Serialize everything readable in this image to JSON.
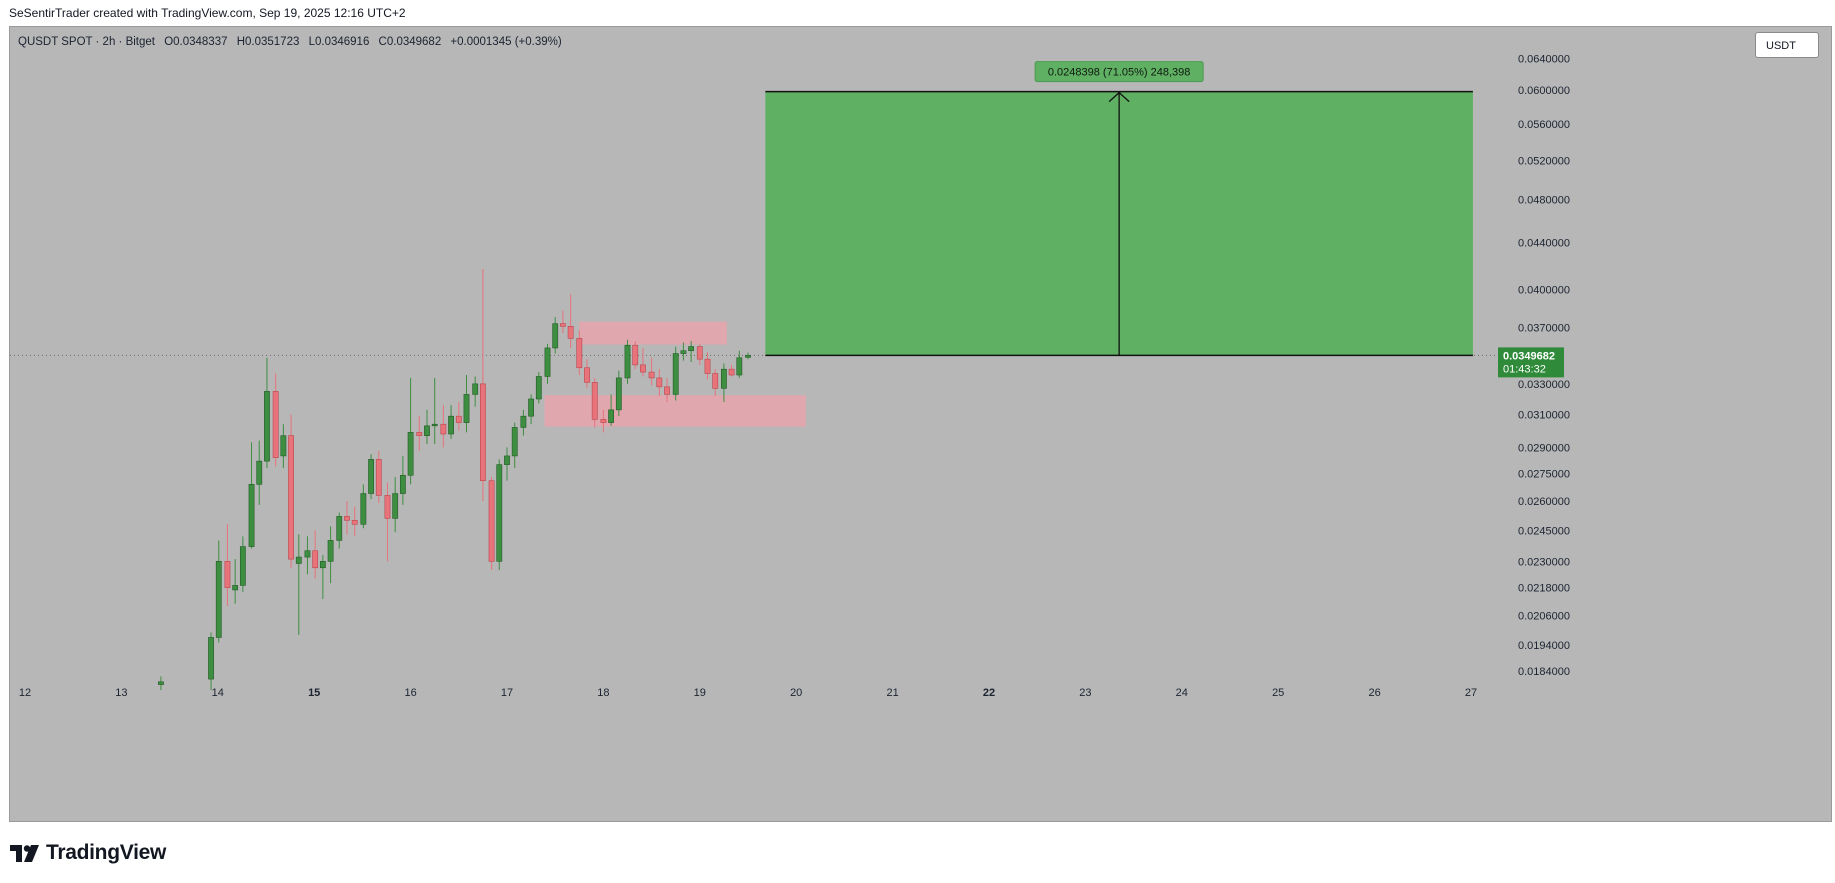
{
  "header": {
    "attribution": "SeSentirTrader created with TradingView.com, Sep 19, 2025 12:16 UTC+2"
  },
  "legend": {
    "symbol": "QUSDT SPOT · 2h · Bitget",
    "open": "O0.0348337",
    "high": "H0.0351723",
    "low": "L0.0346916",
    "close": "C0.0349682",
    "change": "+0.0001345 (+0.39%)"
  },
  "unit_label": "USDT",
  "footer": {
    "brand": "TradingView"
  },
  "colors": {
    "background": "#b7b7b7",
    "up": "#3e8e41",
    "down": "#e8737a",
    "target_zone": "#5fb063",
    "zone": "#e8a5ad",
    "price_tag": "#2f8a3a"
  },
  "chart_data": {
    "type": "candlestick",
    "x_axis": {
      "labels": [
        "12",
        "13",
        "14",
        "15",
        "16",
        "17",
        "18",
        "19",
        "20",
        "21",
        "22",
        "23",
        "24",
        "25",
        "26",
        "27"
      ],
      "bold": [
        "15",
        "22"
      ],
      "unit": "day (Sep 2025)",
      "range": [
        12.0,
        27.0
      ]
    },
    "y_axis": {
      "scale": "log",
      "ticks": [
        "0.0640000",
        "0.0600000",
        "0.0560000",
        "0.0520000",
        "0.0480000",
        "0.0440000",
        "0.0400000",
        "0.0370000",
        "0.0330000",
        "0.0310000",
        "0.0290000",
        "0.0275000",
        "0.0260000",
        "0.0245000",
        "0.0230000",
        "0.0218000",
        "0.0206000",
        "0.0194000",
        "0.0184000"
      ],
      "range": [
        0.0178,
        0.067
      ]
    },
    "current_price": {
      "value": "0.0349682",
      "countdown": "01:43:32"
    },
    "bar_interval": "2h",
    "candles": [
      {
        "x": 13.41,
        "o": 0.0179,
        "h": 0.0182,
        "l": 0.0177,
        "c": 0.018
      },
      {
        "x": 13.93,
        "o": 0.0181,
        "h": 0.0199,
        "l": 0.0177,
        "c": 0.0197
      },
      {
        "x": 14.01,
        "o": 0.0197,
        "h": 0.024,
        "l": 0.0195,
        "c": 0.023
      },
      {
        "x": 14.1,
        "o": 0.023,
        "h": 0.0248,
        "l": 0.021,
        "c": 0.0218
      },
      {
        "x": 14.18,
        "o": 0.0217,
        "h": 0.0231,
        "l": 0.0211,
        "c": 0.0219
      },
      {
        "x": 14.26,
        "o": 0.0219,
        "h": 0.0242,
        "l": 0.0216,
        "c": 0.0237
      },
      {
        "x": 14.35,
        "o": 0.0237,
        "h": 0.0293,
        "l": 0.0236,
        "c": 0.0269
      },
      {
        "x": 14.43,
        "o": 0.0269,
        "h": 0.0294,
        "l": 0.0258,
        "c": 0.0282
      },
      {
        "x": 14.51,
        "o": 0.0282,
        "h": 0.0348,
        "l": 0.0278,
        "c": 0.0325
      },
      {
        "x": 14.6,
        "o": 0.0325,
        "h": 0.0337,
        "l": 0.0279,
        "c": 0.0284
      },
      {
        "x": 14.68,
        "o": 0.0285,
        "h": 0.0304,
        "l": 0.0278,
        "c": 0.0297
      },
      {
        "x": 14.76,
        "o": 0.0297,
        "h": 0.031,
        "l": 0.0227,
        "c": 0.0231
      },
      {
        "x": 14.84,
        "o": 0.0229,
        "h": 0.0243,
        "l": 0.0198,
        "c": 0.0232
      },
      {
        "x": 14.93,
        "o": 0.0232,
        "h": 0.0242,
        "l": 0.0224,
        "c": 0.0235
      },
      {
        "x": 15.01,
        "o": 0.0235,
        "h": 0.0245,
        "l": 0.0222,
        "c": 0.0227
      },
      {
        "x": 15.09,
        "o": 0.0227,
        "h": 0.0233,
        "l": 0.0213,
        "c": 0.023
      },
      {
        "x": 15.17,
        "o": 0.023,
        "h": 0.0247,
        "l": 0.022,
        "c": 0.024
      },
      {
        "x": 15.26,
        "o": 0.024,
        "h": 0.0254,
        "l": 0.0236,
        "c": 0.0252
      },
      {
        "x": 15.34,
        "o": 0.0252,
        "h": 0.026,
        "l": 0.0243,
        "c": 0.025
      },
      {
        "x": 15.42,
        "o": 0.025,
        "h": 0.0257,
        "l": 0.0242,
        "c": 0.0248
      },
      {
        "x": 15.51,
        "o": 0.0248,
        "h": 0.0269,
        "l": 0.0246,
        "c": 0.0264
      },
      {
        "x": 15.59,
        "o": 0.0264,
        "h": 0.0286,
        "l": 0.0261,
        "c": 0.0283
      },
      {
        "x": 15.67,
        "o": 0.0283,
        "h": 0.0288,
        "l": 0.0259,
        "c": 0.0263
      },
      {
        "x": 15.76,
        "o": 0.0263,
        "h": 0.027,
        "l": 0.023,
        "c": 0.0251
      },
      {
        "x": 15.84,
        "o": 0.0251,
        "h": 0.0273,
        "l": 0.0244,
        "c": 0.0264
      },
      {
        "x": 15.92,
        "o": 0.0264,
        "h": 0.0285,
        "l": 0.0258,
        "c": 0.0274
      },
      {
        "x": 16.0,
        "o": 0.0274,
        "h": 0.0334,
        "l": 0.0269,
        "c": 0.0299
      },
      {
        "x": 16.09,
        "o": 0.0299,
        "h": 0.0309,
        "l": 0.0288,
        "c": 0.0297
      },
      {
        "x": 16.17,
        "o": 0.0297,
        "h": 0.0313,
        "l": 0.0292,
        "c": 0.0303
      },
      {
        "x": 16.25,
        "o": 0.0303,
        "h": 0.0334,
        "l": 0.0292,
        "c": 0.0304
      },
      {
        "x": 16.34,
        "o": 0.0304,
        "h": 0.0316,
        "l": 0.029,
        "c": 0.0298
      },
      {
        "x": 16.42,
        "o": 0.0298,
        "h": 0.0316,
        "l": 0.0295,
        "c": 0.0309
      },
      {
        "x": 16.5,
        "o": 0.0309,
        "h": 0.0318,
        "l": 0.03,
        "c": 0.0305
      },
      {
        "x": 16.58,
        "o": 0.0305,
        "h": 0.0336,
        "l": 0.0299,
        "c": 0.0323
      },
      {
        "x": 16.67,
        "o": 0.0323,
        "h": 0.0335,
        "l": 0.0315,
        "c": 0.033
      },
      {
        "x": 16.75,
        "o": 0.033,
        "h": 0.0417,
        "l": 0.026,
        "c": 0.0271
      },
      {
        "x": 16.84,
        "o": 0.0271,
        "h": 0.0273,
        "l": 0.0226,
        "c": 0.023
      },
      {
        "x": 16.92,
        "o": 0.023,
        "h": 0.0283,
        "l": 0.0226,
        "c": 0.028
      },
      {
        "x": 17.0,
        "o": 0.028,
        "h": 0.029,
        "l": 0.0271,
        "c": 0.0285
      },
      {
        "x": 17.08,
        "o": 0.0285,
        "h": 0.0305,
        "l": 0.0278,
        "c": 0.0302
      },
      {
        "x": 17.17,
        "o": 0.0302,
        "h": 0.0313,
        "l": 0.0297,
        "c": 0.0309
      },
      {
        "x": 17.25,
        "o": 0.0309,
        "h": 0.0323,
        "l": 0.0304,
        "c": 0.032
      },
      {
        "x": 17.33,
        "o": 0.032,
        "h": 0.0338,
        "l": 0.0317,
        "c": 0.0335
      },
      {
        "x": 17.42,
        "o": 0.0335,
        "h": 0.0358,
        "l": 0.033,
        "c": 0.0355
      },
      {
        "x": 17.5,
        "o": 0.0355,
        "h": 0.0378,
        "l": 0.0351,
        "c": 0.0373
      },
      {
        "x": 17.58,
        "o": 0.0373,
        "h": 0.0383,
        "l": 0.0366,
        "c": 0.0371
      },
      {
        "x": 17.66,
        "o": 0.0371,
        "h": 0.0396,
        "l": 0.0355,
        "c": 0.0362
      },
      {
        "x": 17.75,
        "o": 0.0362,
        "h": 0.0368,
        "l": 0.0336,
        "c": 0.0341
      },
      {
        "x": 17.83,
        "o": 0.0341,
        "h": 0.0347,
        "l": 0.0327,
        "c": 0.0331
      },
      {
        "x": 17.91,
        "o": 0.0331,
        "h": 0.0334,
        "l": 0.0302,
        "c": 0.0307
      },
      {
        "x": 18.0,
        "o": 0.0307,
        "h": 0.0313,
        "l": 0.0299,
        "c": 0.0305
      },
      {
        "x": 18.08,
        "o": 0.0305,
        "h": 0.0323,
        "l": 0.0303,
        "c": 0.0313
      },
      {
        "x": 18.16,
        "o": 0.0313,
        "h": 0.0339,
        "l": 0.0309,
        "c": 0.0334
      },
      {
        "x": 18.25,
        "o": 0.0334,
        "h": 0.0361,
        "l": 0.033,
        "c": 0.0357
      },
      {
        "x": 18.33,
        "o": 0.0357,
        "h": 0.036,
        "l": 0.034,
        "c": 0.0343
      },
      {
        "x": 18.41,
        "o": 0.0343,
        "h": 0.0355,
        "l": 0.0335,
        "c": 0.0338
      },
      {
        "x": 18.5,
        "o": 0.0338,
        "h": 0.0348,
        "l": 0.0329,
        "c": 0.0334
      },
      {
        "x": 18.58,
        "o": 0.0334,
        "h": 0.034,
        "l": 0.0322,
        "c": 0.0328
      },
      {
        "x": 18.66,
        "o": 0.0328,
        "h": 0.0334,
        "l": 0.0318,
        "c": 0.0323
      },
      {
        "x": 18.75,
        "o": 0.0323,
        "h": 0.0356,
        "l": 0.0319,
        "c": 0.0351
      },
      {
        "x": 18.83,
        "o": 0.0351,
        "h": 0.0359,
        "l": 0.0346,
        "c": 0.0353
      },
      {
        "x": 18.91,
        "o": 0.0353,
        "h": 0.036,
        "l": 0.0345,
        "c": 0.0356
      },
      {
        "x": 19.0,
        "o": 0.0356,
        "h": 0.0358,
        "l": 0.0343,
        "c": 0.0347
      },
      {
        "x": 19.08,
        "o": 0.0347,
        "h": 0.0352,
        "l": 0.0333,
        "c": 0.0337
      },
      {
        "x": 19.16,
        "o": 0.0337,
        "h": 0.034,
        "l": 0.0322,
        "c": 0.0327
      },
      {
        "x": 19.25,
        "o": 0.0327,
        "h": 0.0344,
        "l": 0.0318,
        "c": 0.034
      },
      {
        "x": 19.33,
        "o": 0.034,
        "h": 0.0343,
        "l": 0.0335,
        "c": 0.0336
      },
      {
        "x": 19.41,
        "o": 0.0336,
        "h": 0.0353,
        "l": 0.0334,
        "c": 0.0348
      },
      {
        "x": 19.5,
        "o": 0.0348337,
        "h": 0.0351723,
        "l": 0.0346916,
        "c": 0.0349682
      }
    ],
    "zones": [
      {
        "kind": "supply",
        "x0": 17.75,
        "x1": 19.28,
        "y0": 0.03575,
        "y1": 0.03745
      },
      {
        "kind": "demand",
        "x0": 17.39,
        "x1": 20.1,
        "y0": 0.03025,
        "y1": 0.03225
      }
    ],
    "projection": {
      "x0": 19.68,
      "x1": 27.02,
      "from": 0.0349682,
      "to": 0.0598,
      "label": "0.0248398 (71.05%) 248,398"
    }
  }
}
